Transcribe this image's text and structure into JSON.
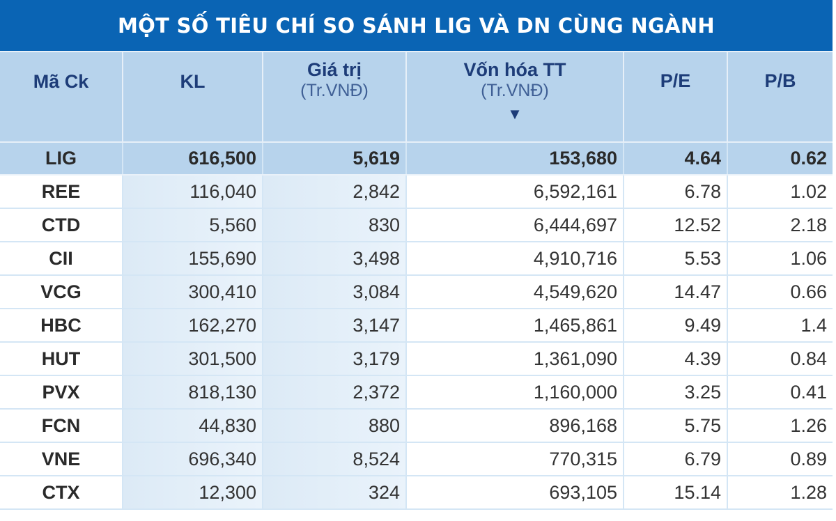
{
  "title": "MỘT SỐ TIÊU CHÍ SO SÁNH LIG VÀ DN CÙNG NGÀNH",
  "headers": [
    {
      "label": "Mã Ck",
      "sub": ""
    },
    {
      "label": "KL",
      "sub": ""
    },
    {
      "label": "Giá trị",
      "sub": "(Tr.VNĐ)"
    },
    {
      "label": "Vốn hóa TT",
      "sub": "(Tr.VNĐ)",
      "sort": "▼"
    },
    {
      "label": "P/E",
      "sub": ""
    },
    {
      "label": "P/B",
      "sub": ""
    }
  ],
  "highlight_row": {
    "code": "LIG",
    "kl": "616,500",
    "gia_tri": "5,619",
    "von_hoa": "153,680",
    "pe": "4.64",
    "pb": "0.62"
  },
  "rows": [
    {
      "code": "REE",
      "kl": "116,040",
      "gia_tri": "2,842",
      "von_hoa": "6,592,161",
      "pe": "6.78",
      "pb": "1.02"
    },
    {
      "code": "CTD",
      "kl": "5,560",
      "gia_tri": "830",
      "von_hoa": "6,444,697",
      "pe": "12.52",
      "pb": "2.18"
    },
    {
      "code": "CII",
      "kl": "155,690",
      "gia_tri": "3,498",
      "von_hoa": "4,910,716",
      "pe": "5.53",
      "pb": "1.06"
    },
    {
      "code": "VCG",
      "kl": "300,410",
      "gia_tri": "3,084",
      "von_hoa": "4,549,620",
      "pe": "14.47",
      "pb": "0.66"
    },
    {
      "code": "HBC",
      "kl": "162,270",
      "gia_tri": "3,147",
      "von_hoa": "1,465,861",
      "pe": "9.49",
      "pb": "1.4"
    },
    {
      "code": "HUT",
      "kl": "301,500",
      "gia_tri": "3,179",
      "von_hoa": "1,361,090",
      "pe": "4.39",
      "pb": "0.84"
    },
    {
      "code": "PVX",
      "kl": "818,130",
      "gia_tri": "2,372",
      "von_hoa": "1,160,000",
      "pe": "3.25",
      "pb": "0.41"
    },
    {
      "code": "FCN",
      "kl": "44,830",
      "gia_tri": "880",
      "von_hoa": "896,168",
      "pe": "5.75",
      "pb": "1.26"
    },
    {
      "code": "VNE",
      "kl": "696,340",
      "gia_tri": "8,524",
      "von_hoa": "770,315",
      "pe": "6.79",
      "pb": "0.89"
    },
    {
      "code": "CTX",
      "kl": "12,300",
      "gia_tri": "324",
      "von_hoa": "693,105",
      "pe": "15.14",
      "pb": "1.28"
    }
  ],
  "colors": {
    "title_bg": "#0a64b4",
    "header_bg": "#b7d3ec",
    "header_text": "#1d3c78",
    "highlight_bg": "#b7d3ec"
  }
}
